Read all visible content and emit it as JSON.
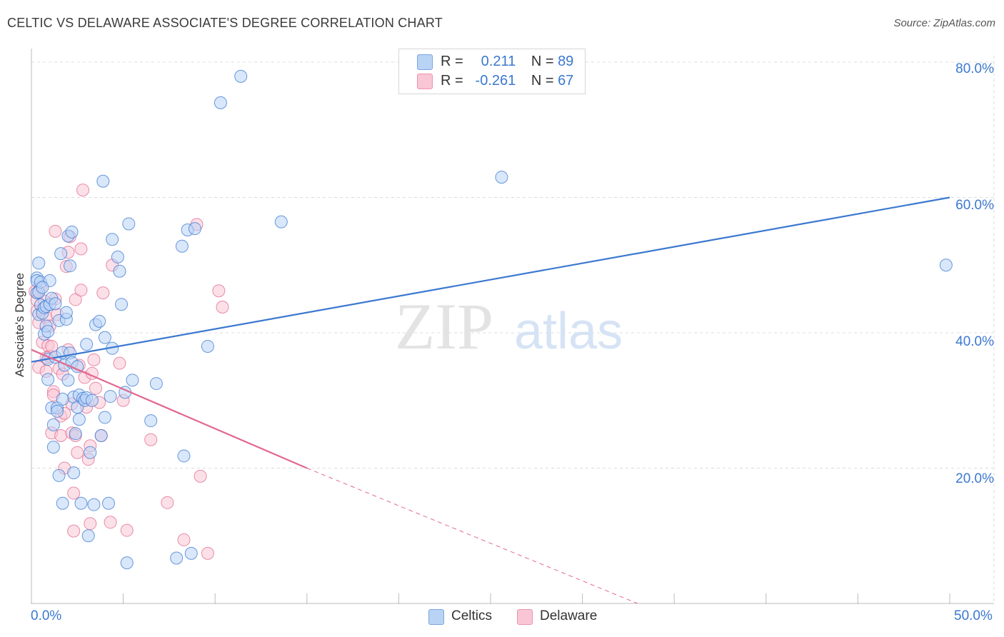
{
  "header": {
    "title": "CELTIC VS DELAWARE ASSOCIATE'S DEGREE CORRELATION CHART",
    "source": "Source: ZipAtlas.com"
  },
  "legend": {
    "r_label": "R =",
    "n_label": "N =",
    "series": [
      {
        "name": "Celtics",
        "r": "0.211",
        "n": "89",
        "color": "#3b78d0"
      },
      {
        "name": "Delaware",
        "r": "-0.261",
        "n": "67",
        "color": "#e2688f"
      }
    ]
  },
  "watermark": {
    "zip": "ZIP",
    "atlas": "atlas"
  },
  "chart_data": {
    "type": "scatter",
    "title": "CELTIC VS DELAWARE ASSOCIATE'S DEGREE CORRELATION CHART",
    "xlabel": "",
    "ylabel": "Associate's Degree",
    "xlim": [
      0,
      0.5
    ],
    "ylim": [
      0,
      0.8
    ],
    "x_tick_labels": [
      "0.0%",
      "50.0%"
    ],
    "y_ticks": [
      0.2,
      0.4,
      0.6,
      0.8
    ],
    "y_tick_labels": [
      "20.0%",
      "40.0%",
      "60.0%",
      "80.0%"
    ],
    "grid": true,
    "series": [
      {
        "name": "Celtics",
        "color": "#3b78d0",
        "fill": "#b9d3f5",
        "trend": {
          "x0": 0.0,
          "y0": 0.357,
          "x1": 0.5,
          "y1": 0.6
        },
        "points": [
          [
            0.003,
            0.481
          ],
          [
            0.003,
            0.477
          ],
          [
            0.003,
            0.459
          ],
          [
            0.004,
            0.503
          ],
          [
            0.004,
            0.427
          ],
          [
            0.004,
            0.46
          ],
          [
            0.005,
            0.475
          ],
          [
            0.005,
            0.441
          ],
          [
            0.006,
            0.429
          ],
          [
            0.007,
            0.398
          ],
          [
            0.007,
            0.437
          ],
          [
            0.008,
            0.439
          ],
          [
            0.008,
            0.41
          ],
          [
            0.009,
            0.402
          ],
          [
            0.009,
            0.331
          ],
          [
            0.009,
            0.361
          ],
          [
            0.01,
            0.477
          ],
          [
            0.01,
            0.442
          ],
          [
            0.011,
            0.289
          ],
          [
            0.011,
            0.451
          ],
          [
            0.012,
            0.264
          ],
          [
            0.012,
            0.231
          ],
          [
            0.013,
            0.364
          ],
          [
            0.014,
            0.289
          ],
          [
            0.014,
            0.284
          ],
          [
            0.015,
            0.418
          ],
          [
            0.015,
            0.189
          ],
          [
            0.016,
            0.517
          ],
          [
            0.017,
            0.148
          ],
          [
            0.017,
            0.371
          ],
          [
            0.018,
            0.352
          ],
          [
            0.019,
            0.42
          ],
          [
            0.019,
            0.43
          ],
          [
            0.02,
            0.543
          ],
          [
            0.021,
            0.499
          ],
          [
            0.021,
            0.37
          ],
          [
            0.022,
            0.356
          ],
          [
            0.022,
            0.549
          ],
          [
            0.023,
            0.305
          ],
          [
            0.023,
            0.193
          ],
          [
            0.024,
            0.251
          ],
          [
            0.025,
            0.35
          ],
          [
            0.025,
            0.29
          ],
          [
            0.026,
            0.308
          ],
          [
            0.026,
            0.272
          ],
          [
            0.027,
            0.148
          ],
          [
            0.028,
            0.303
          ],
          [
            0.029,
            0.3
          ],
          [
            0.03,
            0.383
          ],
          [
            0.03,
            0.304
          ],
          [
            0.031,
            0.1
          ],
          [
            0.032,
            0.223
          ],
          [
            0.033,
            0.3
          ],
          [
            0.034,
            0.146
          ],
          [
            0.035,
            0.412
          ],
          [
            0.037,
            0.417
          ],
          [
            0.038,
            0.248
          ],
          [
            0.039,
            0.624
          ],
          [
            0.04,
            0.275
          ],
          [
            0.04,
            0.393
          ],
          [
            0.042,
            0.148
          ],
          [
            0.043,
            0.306
          ],
          [
            0.044,
            0.538
          ],
          [
            0.047,
            0.512
          ],
          [
            0.048,
            0.491
          ],
          [
            0.049,
            0.442
          ],
          [
            0.051,
            0.312
          ],
          [
            0.052,
            0.06
          ],
          [
            0.053,
            0.561
          ],
          [
            0.055,
            0.33
          ],
          [
            0.065,
            0.27
          ],
          [
            0.068,
            0.325
          ],
          [
            0.079,
            0.067
          ],
          [
            0.082,
            0.528
          ],
          [
            0.083,
            0.218
          ],
          [
            0.085,
            0.552
          ],
          [
            0.087,
            0.074
          ],
          [
            0.089,
            0.554
          ],
          [
            0.096,
            0.38
          ],
          [
            0.103,
            0.74
          ],
          [
            0.114,
            0.779
          ],
          [
            0.136,
            0.564
          ],
          [
            0.256,
            0.63
          ],
          [
            0.498,
            0.5
          ],
          [
            0.006,
            0.467
          ],
          [
            0.013,
            0.443
          ],
          [
            0.02,
            0.33
          ],
          [
            0.044,
            0.377
          ],
          [
            0.017,
            0.302
          ]
        ]
      },
      {
        "name": "Delaware",
        "color": "#e2688f",
        "fill": "#f9c6d6",
        "trend": {
          "x0": 0.0,
          "y0": 0.375,
          "x1": 0.15,
          "y1": 0.2
        },
        "trend_extension": {
          "x0": 0.15,
          "y0": 0.2,
          "x1": 0.33,
          "y1": 0.0
        },
        "points": [
          [
            0.002,
            0.461
          ],
          [
            0.003,
            0.448
          ],
          [
            0.003,
            0.432
          ],
          [
            0.004,
            0.349
          ],
          [
            0.004,
            0.415
          ],
          [
            0.005,
            0.468
          ],
          [
            0.006,
            0.434
          ],
          [
            0.006,
            0.386
          ],
          [
            0.007,
            0.447
          ],
          [
            0.008,
            0.423
          ],
          [
            0.008,
            0.363
          ],
          [
            0.009,
            0.381
          ],
          [
            0.01,
            0.365
          ],
          [
            0.01,
            0.41
          ],
          [
            0.011,
            0.252
          ],
          [
            0.011,
            0.38
          ],
          [
            0.012,
            0.313
          ],
          [
            0.012,
            0.308
          ],
          [
            0.013,
            0.55
          ],
          [
            0.013,
            0.45
          ],
          [
            0.014,
            0.427
          ],
          [
            0.015,
            0.347
          ],
          [
            0.016,
            0.248
          ],
          [
            0.016,
            0.277
          ],
          [
            0.017,
            0.339
          ],
          [
            0.018,
            0.281
          ],
          [
            0.018,
            0.2
          ],
          [
            0.019,
            0.498
          ],
          [
            0.02,
            0.519
          ],
          [
            0.021,
            0.542
          ],
          [
            0.022,
            0.295
          ],
          [
            0.022,
            0.252
          ],
          [
            0.023,
            0.107
          ],
          [
            0.023,
            0.163
          ],
          [
            0.024,
            0.449
          ],
          [
            0.024,
            0.248
          ],
          [
            0.025,
            0.223
          ],
          [
            0.026,
            0.352
          ],
          [
            0.027,
            0.524
          ],
          [
            0.027,
            0.463
          ],
          [
            0.028,
            0.611
          ],
          [
            0.029,
            0.334
          ],
          [
            0.03,
            0.29
          ],
          [
            0.031,
            0.213
          ],
          [
            0.032,
            0.118
          ],
          [
            0.032,
            0.233
          ],
          [
            0.033,
            0.34
          ],
          [
            0.034,
            0.36
          ],
          [
            0.035,
            0.318
          ],
          [
            0.037,
            0.297
          ],
          [
            0.038,
            0.248
          ],
          [
            0.039,
            0.459
          ],
          [
            0.043,
            0.12
          ],
          [
            0.044,
            0.5
          ],
          [
            0.048,
            0.355
          ],
          [
            0.05,
            0.3
          ],
          [
            0.052,
            0.108
          ],
          [
            0.065,
            0.242
          ],
          [
            0.074,
            0.149
          ],
          [
            0.083,
            0.094
          ],
          [
            0.09,
            0.56
          ],
          [
            0.092,
            0.188
          ],
          [
            0.096,
            0.074
          ],
          [
            0.102,
            0.462
          ],
          [
            0.104,
            0.438
          ],
          [
            0.008,
            0.343
          ],
          [
            0.02,
            0.375
          ]
        ]
      }
    ]
  }
}
